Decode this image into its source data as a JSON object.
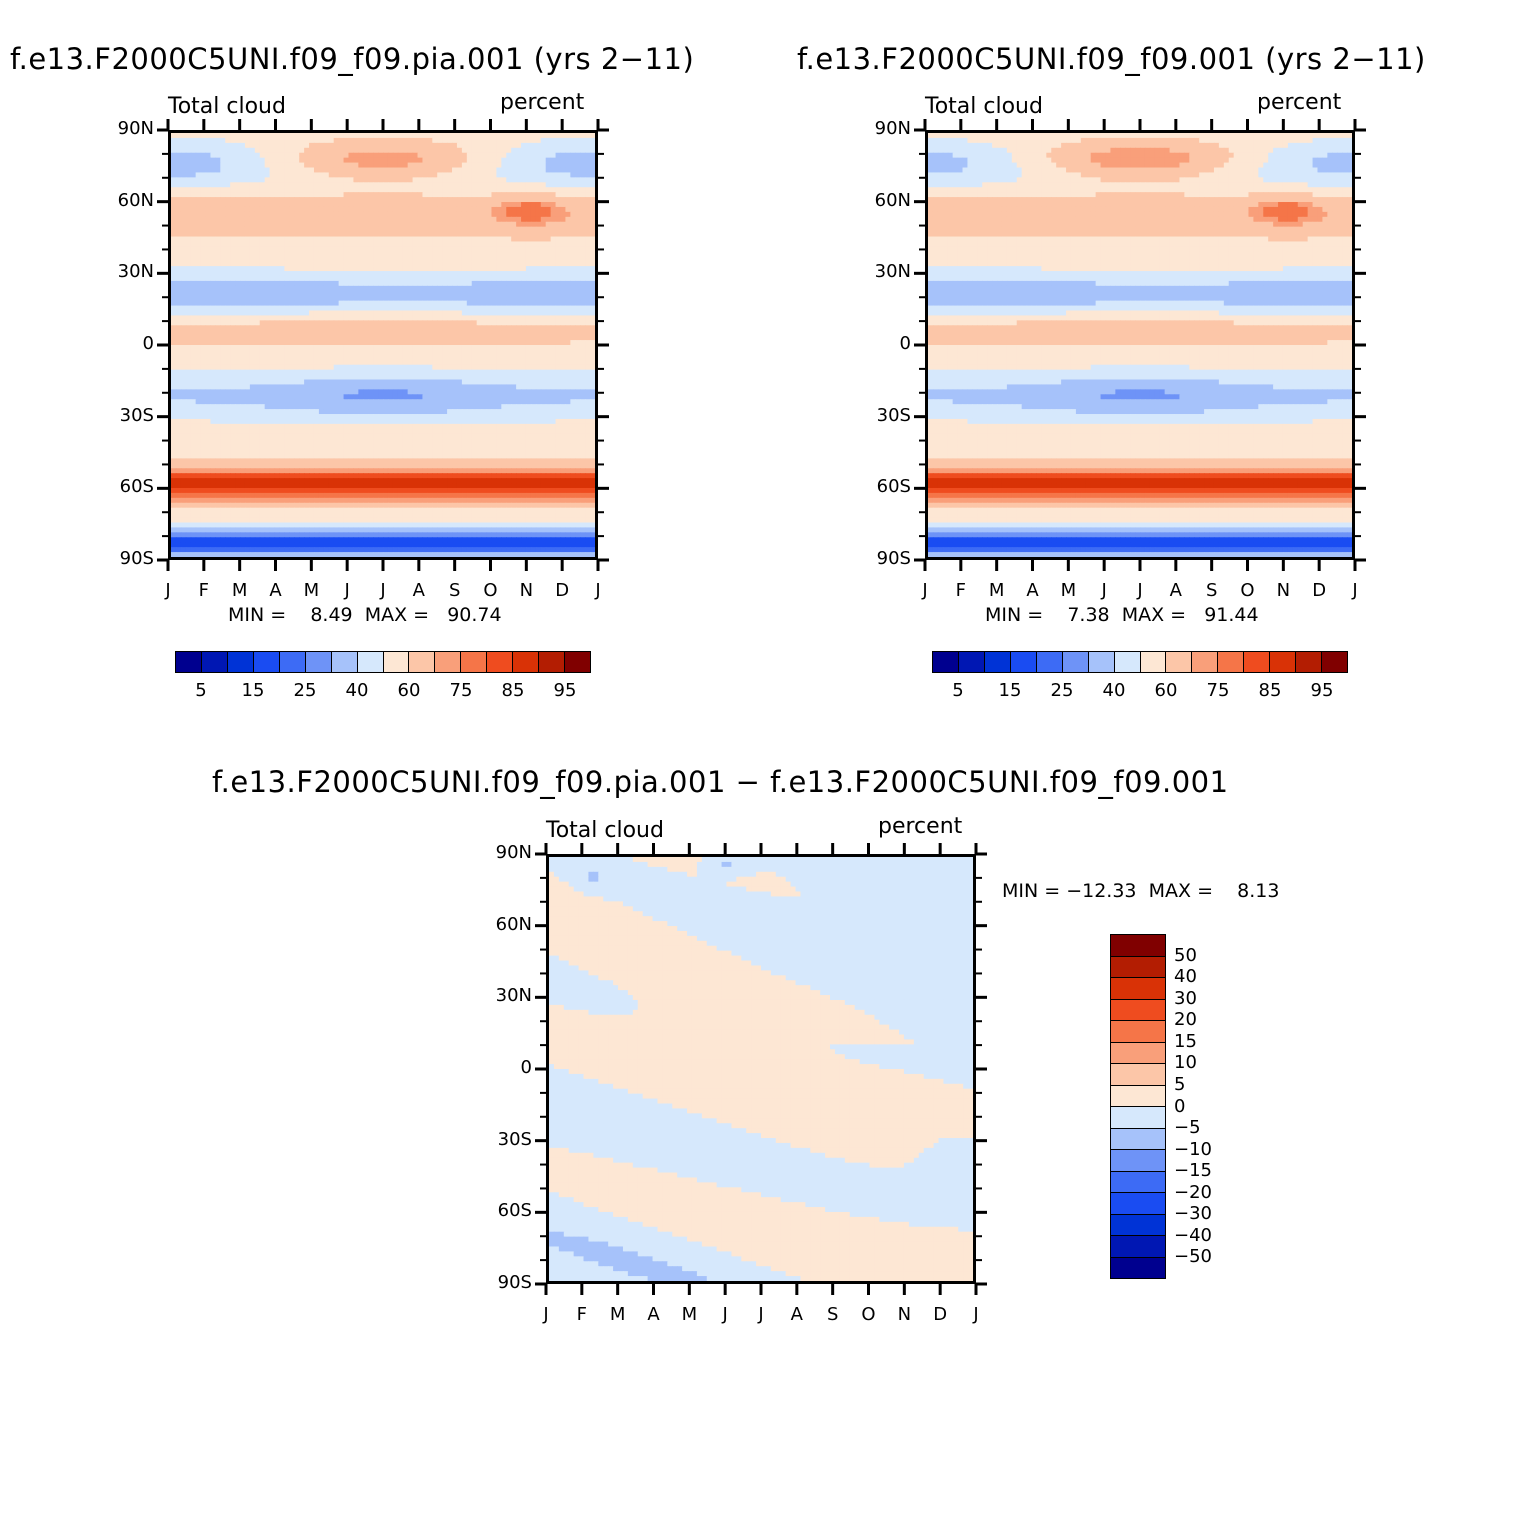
{
  "titles": {
    "left": "f.e13.F2000C5UNI.f09_f09.pia.001 (yrs 2−11)",
    "right": "f.e13.F2000C5UNI.f09_f09.001 (yrs 2−11)",
    "diff": "f.e13.F2000C5UNI.f09_f09.pia.001 − f.e13.F2000C5UNI.f09_f09.001"
  },
  "chart_data": [
    {
      "type": "heatmap",
      "id": "panel-left",
      "title": "f.e13.F2000C5UNI.f09_f09.pia.001 (yrs 2−11)",
      "left_label": "Total cloud",
      "right_label": "percent",
      "x_ticks": [
        "J",
        "F",
        "M",
        "A",
        "M",
        "J",
        "J",
        "A",
        "S",
        "O",
        "N",
        "D",
        "J"
      ],
      "y_ticks": [
        "90N",
        "60N",
        "30N",
        "0",
        "30S",
        "60S",
        "90S"
      ],
      "min_text": "MIN =    8.49",
      "max_text": "MAX =   90.74",
      "levels": [
        5,
        10,
        15,
        20,
        25,
        30,
        40,
        50,
        60,
        70,
        75,
        80,
        85,
        90,
        95
      ],
      "colorbar_labels": [
        "5",
        "15",
        "25",
        "40",
        "60",
        "75",
        "85",
        "95"
      ]
    },
    {
      "type": "heatmap",
      "id": "panel-right",
      "title": "f.e13.F2000C5UNI.f09_f09.001 (yrs 2−11)",
      "left_label": "Total cloud",
      "right_label": "percent",
      "x_ticks": [
        "J",
        "F",
        "M",
        "A",
        "M",
        "J",
        "J",
        "A",
        "S",
        "O",
        "N",
        "D",
        "J"
      ],
      "y_ticks": [
        "90N",
        "60N",
        "30N",
        "0",
        "30S",
        "60S",
        "90S"
      ],
      "min_text": "MIN =    7.38",
      "max_text": "MAX =   91.44",
      "levels": [
        5,
        10,
        15,
        20,
        25,
        30,
        40,
        50,
        60,
        70,
        75,
        80,
        85,
        90,
        95
      ],
      "colorbar_labels": [
        "5",
        "15",
        "25",
        "40",
        "60",
        "75",
        "85",
        "95"
      ]
    },
    {
      "type": "heatmap",
      "id": "panel-diff",
      "title": "f.e13.F2000C5UNI.f09_f09.pia.001 − f.e13.F2000C5UNI.f09_f09.001",
      "left_label": "Total cloud",
      "right_label": "percent",
      "x_ticks": [
        "J",
        "F",
        "M",
        "A",
        "M",
        "J",
        "J",
        "A",
        "S",
        "O",
        "N",
        "D",
        "J"
      ],
      "y_ticks": [
        "90N",
        "60N",
        "30N",
        "0",
        "30S",
        "60S",
        "90S"
      ],
      "min_text": "MIN = −12.33",
      "max_text": "MAX =    8.13",
      "levels": [
        -50,
        -40,
        -30,
        -20,
        -15,
        -10,
        -5,
        0,
        5,
        10,
        15,
        20,
        30,
        40,
        50
      ],
      "colorbar_labels": [
        "50",
        "40",
        "30",
        "20",
        "15",
        "10",
        "5",
        "0",
        "−5",
        "−10",
        "−15",
        "−20",
        "−30",
        "−40",
        "−50"
      ]
    }
  ],
  "palette": [
    "#00008f",
    "#0017b3",
    "#0033d6",
    "#1a4cf2",
    "#3d6bf5",
    "#6e93f7",
    "#a6c2fa",
    "#d6e8fc",
    "#fde7d4",
    "#fcc6a8",
    "#f99f7a",
    "#f57548",
    "#ef4c1f",
    "#d93206",
    "#b31d02",
    "#800000"
  ]
}
